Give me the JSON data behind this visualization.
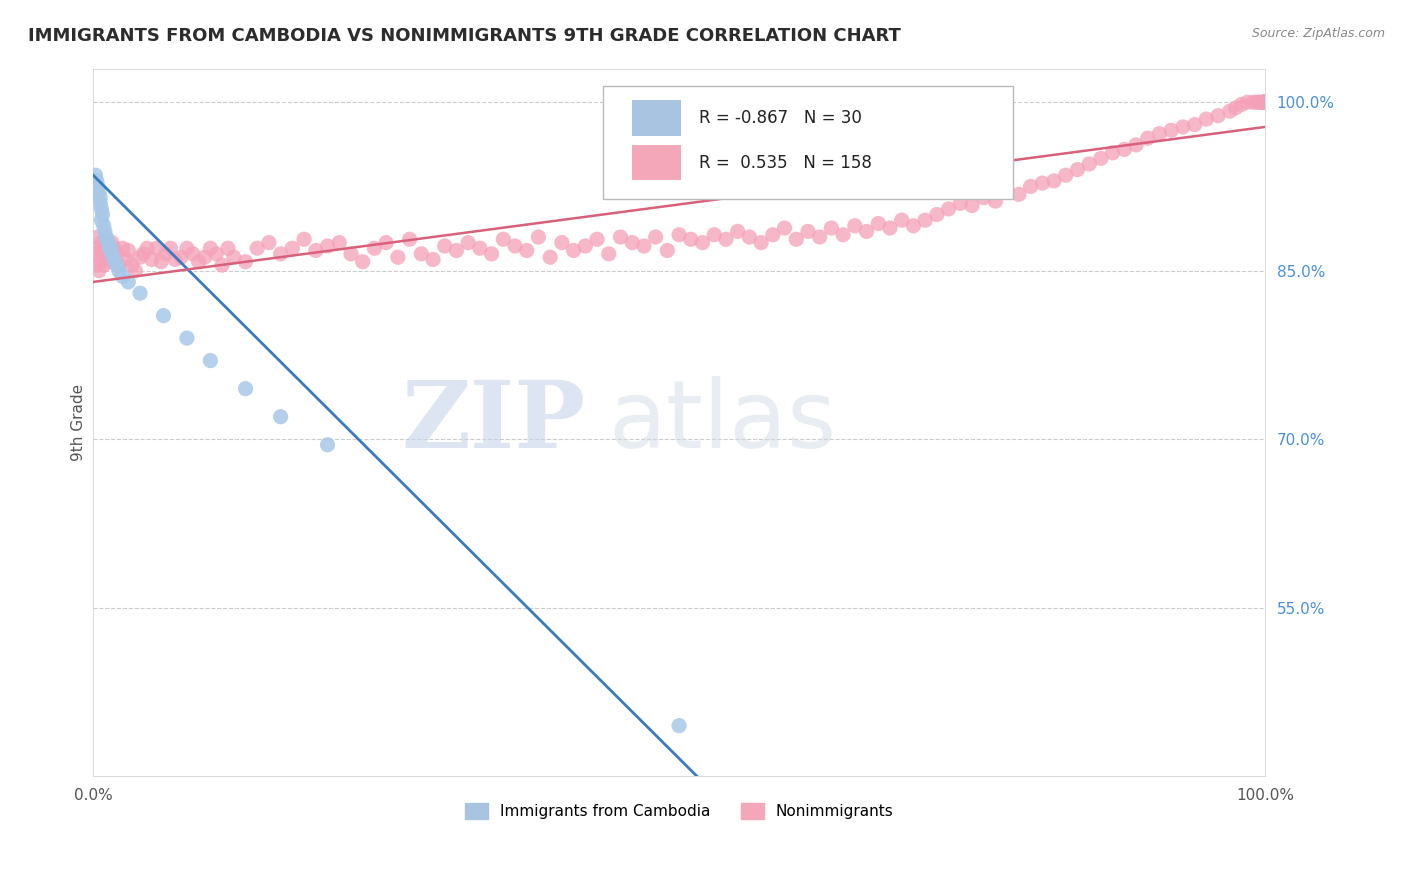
{
  "title": "IMMIGRANTS FROM CAMBODIA VS NONIMMIGRANTS 9TH GRADE CORRELATION CHART",
  "source": "Source: ZipAtlas.com",
  "ylabel": "9th Grade",
  "xlim": [
    0,
    1
  ],
  "ylim": [
    0.4,
    1.03
  ],
  "ytick_labels_right": [
    "55.0%",
    "70.0%",
    "85.0%",
    "100.0%"
  ],
  "ytick_values_right": [
    0.55,
    0.7,
    0.85,
    1.0
  ],
  "blue_R": -0.867,
  "blue_N": 30,
  "pink_R": 0.535,
  "pink_N": 158,
  "blue_color": "#a8c4e0",
  "pink_color": "#f4a7b9",
  "blue_line_color": "#3a7bbf",
  "pink_line_color": "#d9607a",
  "blue_scatter_color": "#a8c8e8",
  "pink_scatter_color": "#f4a0b8",
  "background_color": "#ffffff",
  "grid_color": "#cccccc",
  "watermark_ZIP": "ZIP",
  "watermark_atlas": "atlas",
  "legend_label_blue": "Immigrants from Cambodia",
  "legend_label_pink": "Nonimmigrants",
  "blue_line_x0": 0.0,
  "blue_line_y0": 0.935,
  "blue_line_x1": 0.52,
  "blue_line_y1": 0.395,
  "pink_line_x0": 0.0,
  "pink_line_y0": 0.84,
  "pink_line_x1": 1.0,
  "pink_line_y1": 0.978,
  "blue_dots_x": [
    0.002,
    0.003,
    0.004,
    0.005,
    0.006,
    0.006,
    0.007,
    0.007,
    0.008,
    0.009,
    0.01,
    0.011,
    0.012,
    0.013,
    0.014,
    0.015,
    0.016,
    0.018,
    0.02,
    0.022,
    0.025,
    0.03,
    0.04,
    0.06,
    0.08,
    0.1,
    0.13,
    0.16,
    0.2,
    0.5
  ],
  "blue_dots_y": [
    0.935,
    0.93,
    0.925,
    0.92,
    0.915,
    0.91,
    0.905,
    0.895,
    0.9,
    0.89,
    0.885,
    0.88,
    0.878,
    0.875,
    0.87,
    0.87,
    0.865,
    0.86,
    0.855,
    0.85,
    0.845,
    0.84,
    0.83,
    0.81,
    0.79,
    0.77,
    0.745,
    0.72,
    0.695,
    0.445
  ],
  "pink_dots_x": [
    0.001,
    0.002,
    0.003,
    0.004,
    0.005,
    0.006,
    0.007,
    0.008,
    0.009,
    0.01,
    0.012,
    0.014,
    0.016,
    0.018,
    0.02,
    0.022,
    0.025,
    0.028,
    0.03,
    0.033,
    0.036,
    0.04,
    0.043,
    0.046,
    0.05,
    0.054,
    0.058,
    0.062,
    0.066,
    0.07,
    0.075,
    0.08,
    0.085,
    0.09,
    0.095,
    0.1,
    0.105,
    0.11,
    0.115,
    0.12,
    0.13,
    0.14,
    0.15,
    0.16,
    0.17,
    0.18,
    0.19,
    0.2,
    0.21,
    0.22,
    0.23,
    0.24,
    0.25,
    0.26,
    0.27,
    0.28,
    0.29,
    0.3,
    0.31,
    0.32,
    0.33,
    0.34,
    0.35,
    0.36,
    0.37,
    0.38,
    0.39,
    0.4,
    0.41,
    0.42,
    0.43,
    0.44,
    0.45,
    0.46,
    0.47,
    0.48,
    0.49,
    0.5,
    0.51,
    0.52,
    0.53,
    0.54,
    0.55,
    0.56,
    0.57,
    0.58,
    0.59,
    0.6,
    0.61,
    0.62,
    0.63,
    0.64,
    0.65,
    0.66,
    0.67,
    0.68,
    0.69,
    0.7,
    0.71,
    0.72,
    0.73,
    0.74,
    0.75,
    0.76,
    0.77,
    0.78,
    0.79,
    0.8,
    0.81,
    0.82,
    0.83,
    0.84,
    0.85,
    0.86,
    0.87,
    0.88,
    0.89,
    0.9,
    0.91,
    0.92,
    0.93,
    0.94,
    0.95,
    0.96,
    0.97,
    0.975,
    0.98,
    0.985,
    0.99,
    0.993,
    0.995,
    0.997,
    0.998,
    0.999,
    1.0,
    1.0,
    1.0,
    1.0,
    1.0,
    1.0,
    1.0,
    1.0,
    1.0,
    1.0,
    1.0,
    1.0,
    1.0,
    1.0,
    1.0,
    1.0,
    1.0,
    1.0,
    1.0,
    1.0,
    1.0,
    1.0,
    1.0,
    1.0
  ],
  "pink_dots_y": [
    0.87,
    0.865,
    0.855,
    0.88,
    0.85,
    0.86,
    0.875,
    0.868,
    0.855,
    0.87,
    0.862,
    0.858,
    0.875,
    0.87,
    0.865,
    0.855,
    0.87,
    0.86,
    0.868,
    0.855,
    0.85,
    0.862,
    0.865,
    0.87,
    0.86,
    0.87,
    0.858,
    0.865,
    0.87,
    0.86,
    0.862,
    0.87,
    0.865,
    0.858,
    0.862,
    0.87,
    0.865,
    0.855,
    0.87,
    0.862,
    0.858,
    0.87,
    0.875,
    0.865,
    0.87,
    0.878,
    0.868,
    0.872,
    0.875,
    0.865,
    0.858,
    0.87,
    0.875,
    0.862,
    0.878,
    0.865,
    0.86,
    0.872,
    0.868,
    0.875,
    0.87,
    0.865,
    0.878,
    0.872,
    0.868,
    0.88,
    0.862,
    0.875,
    0.868,
    0.872,
    0.878,
    0.865,
    0.88,
    0.875,
    0.872,
    0.88,
    0.868,
    0.882,
    0.878,
    0.875,
    0.882,
    0.878,
    0.885,
    0.88,
    0.875,
    0.882,
    0.888,
    0.878,
    0.885,
    0.88,
    0.888,
    0.882,
    0.89,
    0.885,
    0.892,
    0.888,
    0.895,
    0.89,
    0.895,
    0.9,
    0.905,
    0.91,
    0.908,
    0.915,
    0.912,
    0.92,
    0.918,
    0.925,
    0.928,
    0.93,
    0.935,
    0.94,
    0.945,
    0.95,
    0.955,
    0.958,
    0.962,
    0.968,
    0.972,
    0.975,
    0.978,
    0.98,
    0.985,
    0.988,
    0.992,
    0.995,
    0.998,
    1.0,
    1.0,
    1.0,
    1.0,
    1.0,
    1.0,
    1.0,
    1.0,
    1.0,
    1.0,
    1.0,
    1.0,
    1.0,
    1.0,
    1.0,
    1.0,
    1.0,
    1.0,
    1.0,
    1.0,
    1.0,
    1.0,
    1.0,
    1.0,
    1.0,
    1.0,
    1.0,
    1.0,
    1.0,
    1.0,
    1.0
  ]
}
